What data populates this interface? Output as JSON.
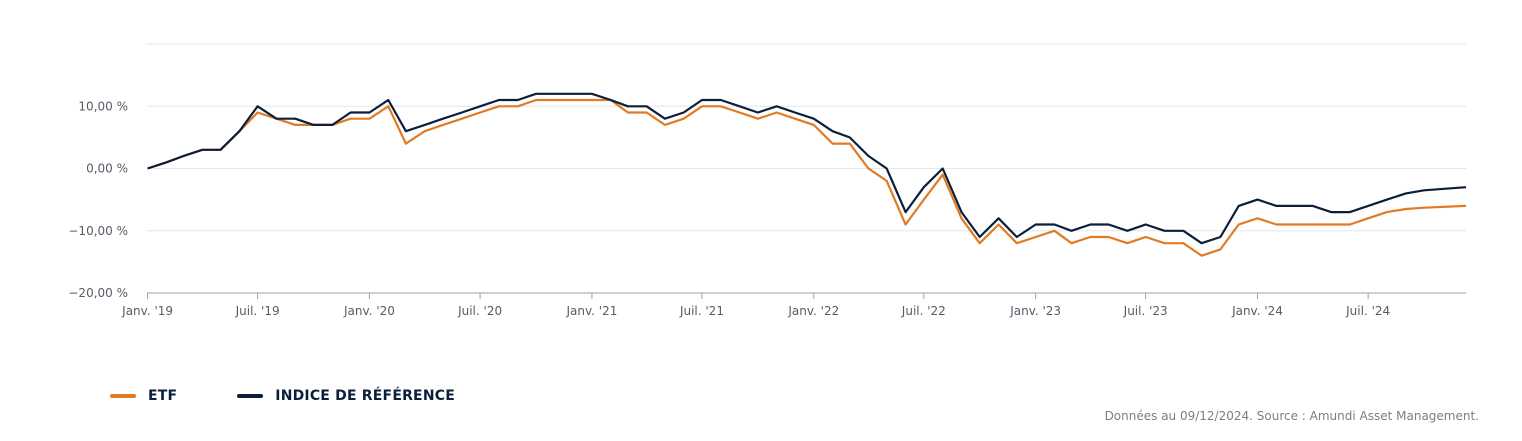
{
  "chart_data": {
    "type": "line",
    "x_ticks": [
      "Janv. '19",
      "Juil. '19",
      "Janv. '20",
      "Juil. '20",
      "Janv. '21",
      "Juil. '21",
      "Janv. '22",
      "Juil. '22",
      "Janv. '23",
      "Juil. '23",
      "Janv. '24",
      "Juil. '24"
    ],
    "y_ticks": [
      "10,00 %",
      "0,00 %",
      "−10,00 %",
      "−20,00 %"
    ],
    "ylim": [
      -20,
      20
    ],
    "xlim": [
      "2018-12-31",
      "2024-12-09"
    ],
    "grid": true,
    "series": [
      {
        "name": "ETF",
        "color": "#e07b24",
        "points": [
          [
            "2019-01-01",
            0
          ],
          [
            "2019-02-01",
            1
          ],
          [
            "2019-03-01",
            2
          ],
          [
            "2019-04-01",
            3
          ],
          [
            "2019-05-01",
            3
          ],
          [
            "2019-06-01",
            6
          ],
          [
            "2019-07-01",
            9
          ],
          [
            "2019-08-01",
            8
          ],
          [
            "2019-09-01",
            7
          ],
          [
            "2019-10-01",
            7
          ],
          [
            "2019-11-01",
            7
          ],
          [
            "2019-12-01",
            8
          ],
          [
            "2020-01-01",
            8
          ],
          [
            "2020-02-01",
            10
          ],
          [
            "2020-03-01",
            4
          ],
          [
            "2020-04-01",
            6
          ],
          [
            "2020-05-01",
            7
          ],
          [
            "2020-06-01",
            8
          ],
          [
            "2020-07-01",
            9
          ],
          [
            "2020-08-01",
            10
          ],
          [
            "2020-09-01",
            10
          ],
          [
            "2020-10-01",
            11
          ],
          [
            "2020-11-01",
            11
          ],
          [
            "2020-12-01",
            11
          ],
          [
            "2021-01-01",
            11
          ],
          [
            "2021-02-01",
            11
          ],
          [
            "2021-03-01",
            9
          ],
          [
            "2021-04-01",
            9
          ],
          [
            "2021-05-01",
            7
          ],
          [
            "2021-06-01",
            8
          ],
          [
            "2021-07-01",
            10
          ],
          [
            "2021-08-01",
            10
          ],
          [
            "2021-09-01",
            9
          ],
          [
            "2021-10-01",
            8
          ],
          [
            "2021-11-01",
            9
          ],
          [
            "2021-12-01",
            8
          ],
          [
            "2022-01-01",
            7
          ],
          [
            "2022-02-01",
            4
          ],
          [
            "2022-03-01",
            4
          ],
          [
            "2022-04-01",
            0
          ],
          [
            "2022-05-01",
            -2
          ],
          [
            "2022-06-01",
            -9
          ],
          [
            "2022-07-01",
            -5
          ],
          [
            "2022-08-01",
            -1
          ],
          [
            "2022-09-01",
            -8
          ],
          [
            "2022-10-01",
            -12
          ],
          [
            "2022-11-01",
            -9
          ],
          [
            "2022-12-01",
            -12
          ],
          [
            "2023-01-01",
            -11
          ],
          [
            "2023-02-01",
            -10
          ],
          [
            "2023-03-01",
            -12
          ],
          [
            "2023-04-01",
            -11
          ],
          [
            "2023-05-01",
            -11
          ],
          [
            "2023-06-01",
            -12
          ],
          [
            "2023-07-01",
            -11
          ],
          [
            "2023-08-01",
            -12
          ],
          [
            "2023-09-01",
            -12
          ],
          [
            "2023-10-01",
            -14
          ],
          [
            "2023-11-01",
            -13
          ],
          [
            "2023-12-01",
            -9
          ],
          [
            "2024-01-01",
            -8
          ],
          [
            "2024-02-01",
            -9
          ],
          [
            "2024-03-01",
            -9
          ],
          [
            "2024-04-01",
            -9
          ],
          [
            "2024-05-01",
            -9
          ],
          [
            "2024-06-01",
            -9
          ],
          [
            "2024-07-01",
            -8
          ],
          [
            "2024-08-01",
            -7
          ],
          [
            "2024-09-01",
            -6.5
          ],
          [
            "2024-10-01",
            -6.3
          ],
          [
            "2024-12-09",
            -6
          ]
        ]
      },
      {
        "name": "INDICE DE RÉFÉRENCE",
        "color": "#0b1f3a",
        "points": [
          [
            "2019-01-01",
            0
          ],
          [
            "2019-02-01",
            1
          ],
          [
            "2019-03-01",
            2
          ],
          [
            "2019-04-01",
            3
          ],
          [
            "2019-05-01",
            3
          ],
          [
            "2019-06-01",
            6
          ],
          [
            "2019-07-01",
            10
          ],
          [
            "2019-08-01",
            8
          ],
          [
            "2019-09-01",
            8
          ],
          [
            "2019-10-01",
            7
          ],
          [
            "2019-11-01",
            7
          ],
          [
            "2019-12-01",
            9
          ],
          [
            "2020-01-01",
            9
          ],
          [
            "2020-02-01",
            11
          ],
          [
            "2020-03-01",
            6
          ],
          [
            "2020-04-01",
            7
          ],
          [
            "2020-05-01",
            8
          ],
          [
            "2020-06-01",
            9
          ],
          [
            "2020-07-01",
            10
          ],
          [
            "2020-08-01",
            11
          ],
          [
            "2020-09-01",
            11
          ],
          [
            "2020-10-01",
            12
          ],
          [
            "2020-11-01",
            12
          ],
          [
            "2020-12-01",
            12
          ],
          [
            "2021-01-01",
            12
          ],
          [
            "2021-02-01",
            11
          ],
          [
            "2021-03-01",
            10
          ],
          [
            "2021-04-01",
            10
          ],
          [
            "2021-05-01",
            8
          ],
          [
            "2021-06-01",
            9
          ],
          [
            "2021-07-01",
            11
          ],
          [
            "2021-08-01",
            11
          ],
          [
            "2021-09-01",
            10
          ],
          [
            "2021-10-01",
            9
          ],
          [
            "2021-11-01",
            10
          ],
          [
            "2021-12-01",
            9
          ],
          [
            "2022-01-01",
            8
          ],
          [
            "2022-02-01",
            6
          ],
          [
            "2022-03-01",
            5
          ],
          [
            "2022-04-01",
            2
          ],
          [
            "2022-05-01",
            0
          ],
          [
            "2022-06-01",
            -7
          ],
          [
            "2022-07-01",
            -3
          ],
          [
            "2022-08-01",
            0
          ],
          [
            "2022-09-01",
            -7
          ],
          [
            "2022-10-01",
            -11
          ],
          [
            "2022-11-01",
            -8
          ],
          [
            "2022-12-01",
            -11
          ],
          [
            "2023-01-01",
            -9
          ],
          [
            "2023-02-01",
            -9
          ],
          [
            "2023-03-01",
            -10
          ],
          [
            "2023-04-01",
            -9
          ],
          [
            "2023-05-01",
            -9
          ],
          [
            "2023-06-01",
            -10
          ],
          [
            "2023-07-01",
            -9
          ],
          [
            "2023-08-01",
            -10
          ],
          [
            "2023-09-01",
            -10
          ],
          [
            "2023-10-01",
            -12
          ],
          [
            "2023-11-01",
            -11
          ],
          [
            "2023-12-01",
            -6
          ],
          [
            "2024-01-01",
            -5
          ],
          [
            "2024-02-01",
            -6
          ],
          [
            "2024-03-01",
            -6
          ],
          [
            "2024-04-01",
            -6
          ],
          [
            "2024-05-01",
            -7
          ],
          [
            "2024-06-01",
            -7
          ],
          [
            "2024-07-01",
            -6
          ],
          [
            "2024-08-01",
            -5
          ],
          [
            "2024-09-01",
            -4
          ],
          [
            "2024-10-01",
            -3.5
          ],
          [
            "2024-12-09",
            -3
          ]
        ]
      }
    ]
  },
  "legend": [
    {
      "label": "ETF",
      "color": "#e07b24"
    },
    {
      "label": "INDICE DE RÉFÉRENCE",
      "color": "#0b1f3a"
    }
  ],
  "source_note": "Données au 09/12/2024. Source : Amundi Asset Management."
}
